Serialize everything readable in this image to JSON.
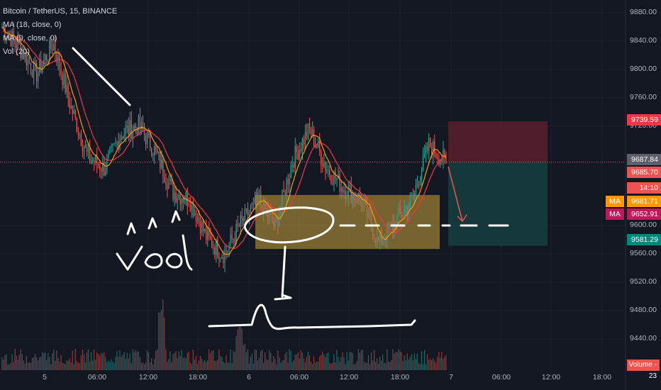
{
  "legend": {
    "symbol_line": "Bitcoin / TetherUS, 15, BINANCE",
    "ma18": "MA (18, close, 0)",
    "ma9": "MA (9, close, 0)",
    "vol": "Vol (20)"
  },
  "chart_data": {
    "type": "candlestick",
    "ylim": [
      9415,
      9895
    ],
    "y_ticks": [
      "9880.00",
      "9840.00",
      "9800.00",
      "9760.00",
      "9720.00",
      "9600.00",
      "9560.00",
      "9520.00",
      "9480.00",
      "9440.00"
    ],
    "x_ticks": [
      "5",
      "06:00",
      "12:00",
      "18:00",
      "6",
      "06:00",
      "12:00",
      "18:00",
      "7",
      "06:00",
      "12:00",
      "18:00"
    ],
    "price_labels": {
      "stop": "9739.59",
      "current": "9687.84",
      "prev": "9685.70",
      "countdown": "14:10",
      "ma_a": "9681.71",
      "ma_b": "9652.91",
      "target": "9581.29",
      "ma_tag": "MA",
      "volume": "Volume - 23"
    },
    "annotations": {
      "support_box": {
        "from": "6 04:00",
        "to": "6 20:00",
        "low": 9577,
        "high": 9646
      },
      "short_position": {
        "entry": 9688,
        "stop": 9740,
        "target": 9581
      },
      "handwriting": "vol ↑↑↑"
    },
    "colors": {
      "up": "#26a69a",
      "down": "#ef5350",
      "ma18": "#f23645",
      "ma9": "#ff9800",
      "box": "#c9a23a",
      "stop_zone": "#5b1f2b",
      "target_zone": "#163f3f"
    },
    "key_prices": [
      9860,
      9835,
      9800,
      9840,
      9760,
      9695,
      9680,
      9725,
      9735,
      9700,
      9650,
      9640,
      9590,
      9570,
      9610,
      9640,
      9605,
      9690,
      9730,
      9680,
      9655,
      9640,
      9585,
      9610,
      9640,
      9710,
      9687
    ]
  }
}
